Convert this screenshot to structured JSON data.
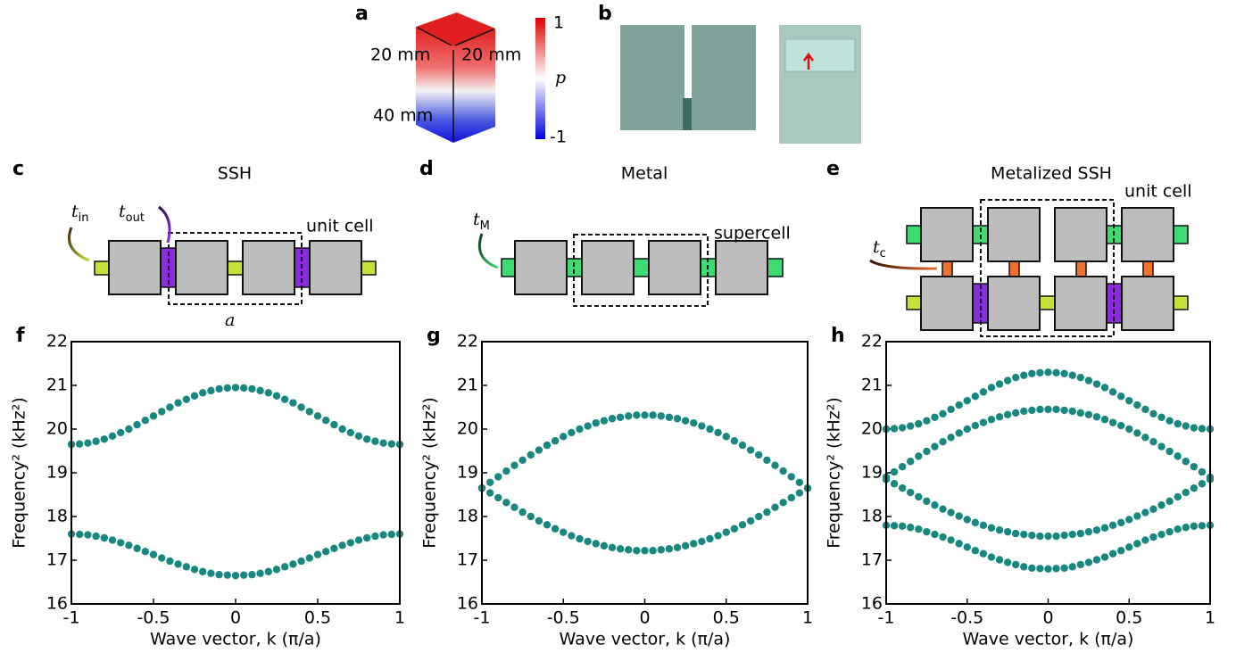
{
  "diagrams": {
    "a": {
      "label": "a",
      "width1": "20 mm",
      "width2": "20 mm",
      "height": "40 mm",
      "cbar_max": "1",
      "cbar_min": "-1",
      "cbar_symbol": "p"
    },
    "b": {
      "label": "b"
    },
    "c": {
      "label": "c",
      "title": "SSH",
      "t_in": {
        "symbol": "t",
        "sub": "in"
      },
      "t_out": {
        "symbol": "t",
        "sub": "out"
      },
      "cell": "unit cell",
      "lattice": "a"
    },
    "d": {
      "label": "d",
      "title": "Metal",
      "t_M": {
        "symbol": "t",
        "sub": "M"
      },
      "cell": "supercell"
    },
    "e": {
      "label": "e",
      "title": "Metalized SSH",
      "t_c": {
        "symbol": "t",
        "sub": "c"
      },
      "cell": "unit cell"
    }
  },
  "chart_data": [
    {
      "type": "scatter",
      "label": "f",
      "xlabel": "Wave vector, k (π/a)",
      "ylabel": "Frequency² (kHz²)",
      "color": "#17877f",
      "xlim": [
        -1,
        1
      ],
      "ylim": [
        16,
        22
      ],
      "xticks": [
        -1,
        -0.5,
        0,
        0.5,
        1
      ],
      "yticks": [
        16,
        17,
        18,
        19,
        20,
        21,
        22
      ],
      "x": [
        -1,
        -0.95,
        -0.9,
        -0.85,
        -0.8,
        -0.75,
        -0.7,
        -0.65,
        -0.6,
        -0.55,
        -0.5,
        -0.45,
        -0.4,
        -0.35,
        -0.3,
        -0.25,
        -0.2,
        -0.15,
        -0.1,
        -0.05,
        0,
        0.05,
        0.1,
        0.15,
        0.2,
        0.25,
        0.3,
        0.35,
        0.4,
        0.45,
        0.5,
        0.55,
        0.6,
        0.65,
        0.7,
        0.75,
        0.8,
        0.85,
        0.9,
        0.95,
        1
      ],
      "series": [
        {
          "values": [
            19.65,
            19.66,
            19.68,
            19.72,
            19.77,
            19.84,
            19.92,
            20.0,
            20.1,
            20.2,
            20.3,
            20.4,
            20.5,
            20.6,
            20.68,
            20.76,
            20.83,
            20.88,
            20.92,
            20.94,
            20.95,
            20.94,
            20.92,
            20.88,
            20.83,
            20.76,
            20.68,
            20.6,
            20.5,
            20.4,
            20.3,
            20.2,
            20.1,
            20.0,
            19.92,
            19.84,
            19.77,
            19.72,
            19.68,
            19.66,
            19.65
          ]
        },
        {
          "values": [
            17.6,
            17.59,
            17.58,
            17.55,
            17.51,
            17.46,
            17.4,
            17.34,
            17.27,
            17.2,
            17.13,
            17.05,
            16.98,
            16.91,
            16.85,
            16.79,
            16.74,
            16.7,
            16.67,
            16.66,
            16.65,
            16.66,
            16.67,
            16.7,
            16.74,
            16.79,
            16.85,
            16.91,
            16.98,
            17.05,
            17.13,
            17.2,
            17.27,
            17.34,
            17.4,
            17.46,
            17.51,
            17.55,
            17.58,
            17.59,
            17.6
          ]
        }
      ]
    },
    {
      "type": "scatter",
      "label": "g",
      "xlabel": "Wave vector, k (π/a)",
      "ylabel": "Frequency² (kHz²)",
      "color": "#17877f",
      "xlim": [
        -1,
        1
      ],
      "ylim": [
        16,
        22
      ],
      "xticks": [
        -1,
        -0.5,
        0,
        0.5,
        1
      ],
      "yticks": [
        16,
        17,
        18,
        19,
        20,
        21,
        22
      ],
      "x": [
        -1,
        -0.95,
        -0.9,
        -0.85,
        -0.8,
        -0.75,
        -0.7,
        -0.65,
        -0.6,
        -0.55,
        -0.5,
        -0.45,
        -0.4,
        -0.35,
        -0.3,
        -0.25,
        -0.2,
        -0.15,
        -0.1,
        -0.05,
        0,
        0.05,
        0.1,
        0.15,
        0.2,
        0.25,
        0.3,
        0.35,
        0.4,
        0.45,
        0.5,
        0.55,
        0.6,
        0.65,
        0.7,
        0.75,
        0.8,
        0.85,
        0.9,
        0.95,
        1
      ],
      "series": [
        {
          "values": [
            18.65,
            18.78,
            18.91,
            19.04,
            19.17,
            19.29,
            19.41,
            19.52,
            19.63,
            19.73,
            19.83,
            19.92,
            20.0,
            20.07,
            20.14,
            20.19,
            20.24,
            20.27,
            20.3,
            20.32,
            20.32,
            20.32,
            20.3,
            20.27,
            20.24,
            20.19,
            20.14,
            20.07,
            20.0,
            19.92,
            19.83,
            19.73,
            19.63,
            19.52,
            19.41,
            19.29,
            19.17,
            19.04,
            18.91,
            18.78,
            18.65
          ]
        },
        {
          "values": [
            18.65,
            18.54,
            18.43,
            18.32,
            18.21,
            18.1,
            18.0,
            17.9,
            17.81,
            17.72,
            17.64,
            17.56,
            17.49,
            17.43,
            17.38,
            17.33,
            17.29,
            17.26,
            17.24,
            17.22,
            17.22,
            17.22,
            17.24,
            17.26,
            17.29,
            17.33,
            17.38,
            17.43,
            17.49,
            17.56,
            17.64,
            17.72,
            17.81,
            17.9,
            18.0,
            18.1,
            18.21,
            18.32,
            18.43,
            18.54,
            18.65
          ]
        }
      ]
    },
    {
      "type": "scatter",
      "label": "h",
      "xlabel": "Wave vector, k (π/a)",
      "ylabel": "Frequency² (kHz²)",
      "color": "#17877f",
      "xlim": [
        -1,
        1
      ],
      "ylim": [
        16,
        22
      ],
      "xticks": [
        -1,
        -0.5,
        0,
        0.5,
        1
      ],
      "yticks": [
        16,
        17,
        18,
        19,
        20,
        21,
        22
      ],
      "x": [
        -1,
        -0.95,
        -0.9,
        -0.85,
        -0.8,
        -0.75,
        -0.7,
        -0.65,
        -0.6,
        -0.55,
        -0.5,
        -0.45,
        -0.4,
        -0.35,
        -0.3,
        -0.25,
        -0.2,
        -0.15,
        -0.1,
        -0.05,
        0,
        0.05,
        0.1,
        0.15,
        0.2,
        0.25,
        0.3,
        0.35,
        0.4,
        0.45,
        0.5,
        0.55,
        0.6,
        0.65,
        0.7,
        0.75,
        0.8,
        0.85,
        0.9,
        0.95,
        1
      ],
      "series": [
        {
          "values": [
            20.0,
            20.01,
            20.03,
            20.07,
            20.12,
            20.19,
            20.27,
            20.35,
            20.45,
            20.55,
            20.65,
            20.75,
            20.85,
            20.95,
            21.03,
            21.11,
            21.18,
            21.23,
            21.27,
            21.29,
            21.3,
            21.29,
            21.27,
            21.23,
            21.18,
            21.11,
            21.03,
            20.95,
            20.85,
            20.75,
            20.65,
            20.55,
            20.45,
            20.35,
            20.27,
            20.19,
            20.12,
            20.07,
            20.03,
            20.01,
            20.0
          ]
        },
        {
          "values": [
            18.9,
            19.02,
            19.14,
            19.26,
            19.38,
            19.49,
            19.6,
            19.71,
            19.81,
            19.91,
            20.0,
            20.08,
            20.15,
            20.22,
            20.28,
            20.33,
            20.37,
            20.41,
            20.43,
            20.45,
            20.45,
            20.45,
            20.43,
            20.41,
            20.37,
            20.33,
            20.28,
            20.22,
            20.15,
            20.08,
            20.0,
            19.91,
            19.81,
            19.71,
            19.6,
            19.49,
            19.38,
            19.26,
            19.14,
            19.02,
            18.9
          ]
        },
        {
          "values": [
            18.85,
            18.75,
            18.65,
            18.55,
            18.45,
            18.35,
            18.26,
            18.17,
            18.09,
            18.01,
            17.93,
            17.86,
            17.8,
            17.74,
            17.69,
            17.65,
            17.61,
            17.59,
            17.57,
            17.55,
            17.55,
            17.55,
            17.57,
            17.59,
            17.61,
            17.65,
            17.69,
            17.74,
            17.8,
            17.86,
            17.93,
            18.01,
            18.09,
            18.17,
            18.26,
            18.35,
            18.45,
            18.55,
            18.65,
            18.75,
            18.85
          ]
        },
        {
          "values": [
            17.8,
            17.79,
            17.78,
            17.75,
            17.71,
            17.65,
            17.59,
            17.53,
            17.46,
            17.38,
            17.3,
            17.22,
            17.15,
            17.07,
            17.01,
            16.95,
            16.9,
            16.85,
            16.82,
            16.81,
            16.8,
            16.81,
            16.82,
            16.85,
            16.9,
            16.95,
            17.01,
            17.07,
            17.15,
            17.22,
            17.3,
            17.38,
            17.46,
            17.53,
            17.59,
            17.65,
            17.71,
            17.75,
            17.78,
            17.79,
            17.8
          ]
        }
      ]
    }
  ]
}
